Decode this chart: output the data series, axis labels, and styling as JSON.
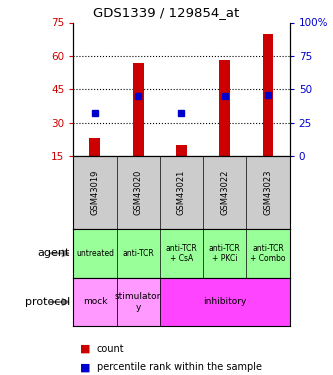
{
  "title": "GDS1339 / 129854_at",
  "samples": [
    "GSM43019",
    "GSM43020",
    "GSM43021",
    "GSM43022",
    "GSM43023"
  ],
  "counts": [
    23,
    57,
    20,
    58,
    70
  ],
  "percentile_ranks": [
    32,
    45,
    32,
    45,
    46
  ],
  "ylim_left": [
    15,
    75
  ],
  "yticks_left": [
    15,
    30,
    45,
    60,
    75
  ],
  "ylim_right": [
    0,
    100
  ],
  "yticks_right": [
    0,
    25,
    50,
    75,
    100
  ],
  "bar_color": "#cc0000",
  "dot_color": "#0000cc",
  "agent_labels": [
    "untreated",
    "anti-TCR",
    "anti-TCR\n+ CsA",
    "anti-TCR\n+ PKCi",
    "anti-TCR\n+ Combo"
  ],
  "agent_bg_color": "#99ff99",
  "protocol_groups": [
    {
      "label": "mock",
      "span": [
        0,
        1
      ],
      "color": "#ff99ff"
    },
    {
      "label": "stimulator\ny",
      "span": [
        1,
        2
      ],
      "color": "#ff99ff"
    },
    {
      "label": "inhibitory",
      "span": [
        2,
        5
      ],
      "color": "#ff44ff"
    }
  ],
  "sample_bg_color": "#cccccc",
  "legend_count_color": "#cc0000",
  "legend_pct_color": "#0000cc",
  "agent_row_label": "agent",
  "protocol_row_label": "protocol",
  "bar_width": 0.25
}
